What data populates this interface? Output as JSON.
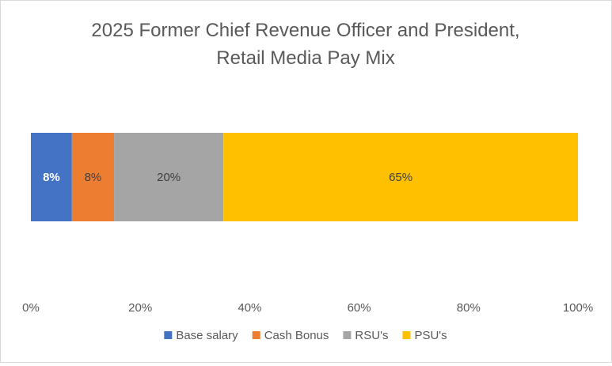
{
  "chart_data": {
    "type": "bar",
    "orientation": "horizontal",
    "stacked": true,
    "title": [
      "2025 Former Chief Revenue Officer and President,",
      "Retail Media Pay Mix"
    ],
    "xlim": [
      0,
      1
    ],
    "x_tick_labels": [
      "0%",
      "20%",
      "40%",
      "60%",
      "80%",
      "100%"
    ],
    "x_ticks": [
      0,
      0.2,
      0.4,
      0.6,
      0.8,
      1.0
    ],
    "grid": false,
    "legend_position": "bottom",
    "series": [
      {
        "name": "Base salary",
        "value": 0.075,
        "label": "8%",
        "color": "#4472C4",
        "label_color": "#FFFFFF",
        "label_bold": true
      },
      {
        "name": "Cash Bonus",
        "value": 0.077,
        "label": "8%",
        "color": "#ED7D31",
        "label_color": "#404040",
        "label_bold": false
      },
      {
        "name": "RSU's",
        "value": 0.2,
        "label": "20%",
        "color": "#A5A5A5",
        "label_color": "#404040",
        "label_bold": false
      },
      {
        "name": "PSU's",
        "value": 0.648,
        "label": "65%",
        "color": "#FFC000",
        "label_color": "#404040",
        "label_bold": false
      }
    ]
  }
}
